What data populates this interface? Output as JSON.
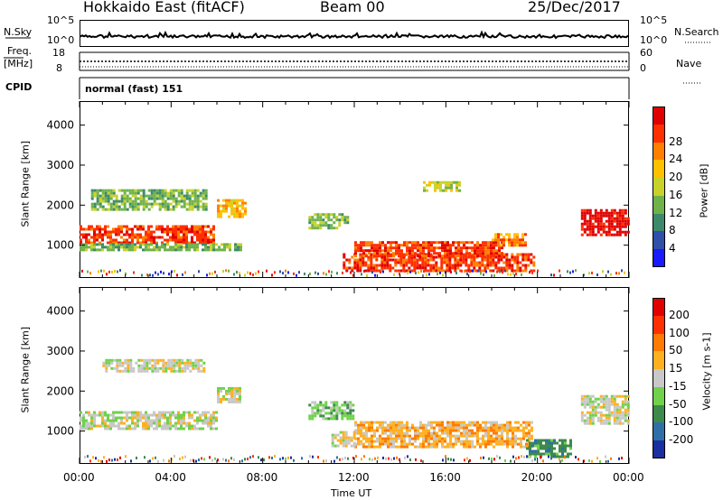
{
  "header": {
    "title": "Hokkaido East (fitACF)",
    "beam": "Beam 00",
    "date": "25/Dec/2017"
  },
  "noise_panel": {
    "left_label": "N.Sky",
    "right_label": "N.Search",
    "tick_top": "10^5",
    "tick_bottom": "10^0"
  },
  "freq_panel": {
    "left_label_1": "Freq.",
    "left_label_2": "[MHz]",
    "left_tick_top": "18",
    "left_tick_bottom": "8",
    "right_label": "Nave",
    "right_tick_top": "60",
    "right_tick_bottom": "0"
  },
  "cpid_panel": {
    "label": "CPID",
    "value": "normal (fast) 151"
  },
  "chart_data": [
    {
      "type": "heatmap",
      "title": "",
      "xlabel": "Time UT",
      "ylabel": "Slant Range [km]",
      "x_range_hours": [
        0,
        24
      ],
      "ylim": [
        180,
        4600
      ],
      "x_ticks": [
        "00:00",
        "04:00",
        "08:00",
        "12:00",
        "16:00",
        "20:00",
        "00:00"
      ],
      "y_ticks": [
        "1000",
        "2000",
        "3000",
        "4000"
      ],
      "colorbar": {
        "label": "Power [dB]",
        "ticks": [
          "4",
          "8",
          "12",
          "16",
          "20",
          "24",
          "28"
        ],
        "colors": [
          "#1a1aff",
          "#2f4fa8",
          "#3d8a6a",
          "#6fb24a",
          "#c8d22a",
          "#ffc000",
          "#ff8000",
          "#ff3000",
          "#e00000"
        ]
      },
      "regions": [
        {
          "t0": 0.0,
          "t1": 5.9,
          "r0": 1050,
          "r1": 1500,
          "level": 7
        },
        {
          "t0": 0.0,
          "t1": 7.0,
          "r0": 900,
          "r1": 1050,
          "level": 3
        },
        {
          "t0": 6.0,
          "t1": 7.2,
          "r0": 1700,
          "r1": 2150,
          "level": 5
        },
        {
          "t0": 10.0,
          "t1": 11.7,
          "r0": 1400,
          "r1": 1800,
          "level": 3
        },
        {
          "t0": 11.5,
          "t1": 19.8,
          "r0": 350,
          "r1": 800,
          "level": 7
        },
        {
          "t0": 12.0,
          "t1": 18.5,
          "r0": 700,
          "r1": 1100,
          "level": 7
        },
        {
          "t0": 18.0,
          "t1": 19.5,
          "r0": 1000,
          "r1": 1300,
          "level": 6
        },
        {
          "t0": 21.9,
          "t1": 24.0,
          "r0": 1250,
          "r1": 1900,
          "level": 8
        },
        {
          "t0": 0.5,
          "t1": 5.5,
          "r0": 1900,
          "r1": 2400,
          "level": 3
        },
        {
          "t0": 15.0,
          "t1": 16.6,
          "r0": 2350,
          "r1": 2600,
          "level": 4
        }
      ]
    },
    {
      "type": "heatmap",
      "title": "",
      "xlabel": "Time UT",
      "ylabel": "Slant Range [km]",
      "x_range_hours": [
        0,
        24
      ],
      "ylim": [
        180,
        4600
      ],
      "x_ticks": [
        "00:00",
        "04:00",
        "08:00",
        "12:00",
        "16:00",
        "20:00",
        "00:00"
      ],
      "y_ticks": [
        "1000",
        "2000",
        "3000",
        "4000"
      ],
      "colorbar": {
        "label": "Velocity [m s-1]",
        "ticks": [
          "200",
          "100",
          "50",
          "15",
          "-15",
          "-50",
          "-100",
          "-200"
        ],
        "colors": [
          "#1a2fa0",
          "#2f6fa8",
          "#3d8a4a",
          "#6fd24a",
          "#c8c8c8",
          "#ffb020",
          "#ff7a00",
          "#ff3000",
          "#e00000"
        ]
      },
      "regions": [
        {
          "t0": 0.0,
          "t1": 6.0,
          "r0": 1050,
          "r1": 1500,
          "level": 4
        },
        {
          "t0": 6.0,
          "t1": 7.0,
          "r0": 1700,
          "r1": 2100,
          "level": 4
        },
        {
          "t0": 10.0,
          "t1": 12.0,
          "r0": 1300,
          "r1": 1750,
          "level": 3
        },
        {
          "t0": 12.0,
          "t1": 19.8,
          "r0": 600,
          "r1": 1250,
          "level": 5
        },
        {
          "t0": 11.0,
          "t1": 12.0,
          "r0": 600,
          "r1": 1000,
          "level": 4
        },
        {
          "t0": 19.5,
          "t1": 21.5,
          "r0": 350,
          "r1": 800,
          "level": 2
        },
        {
          "t0": 21.9,
          "t1": 24.0,
          "r0": 1200,
          "r1": 1900,
          "level": 4
        },
        {
          "t0": 1.0,
          "t1": 5.5,
          "r0": 2500,
          "r1": 2800,
          "level": 4
        }
      ]
    }
  ]
}
